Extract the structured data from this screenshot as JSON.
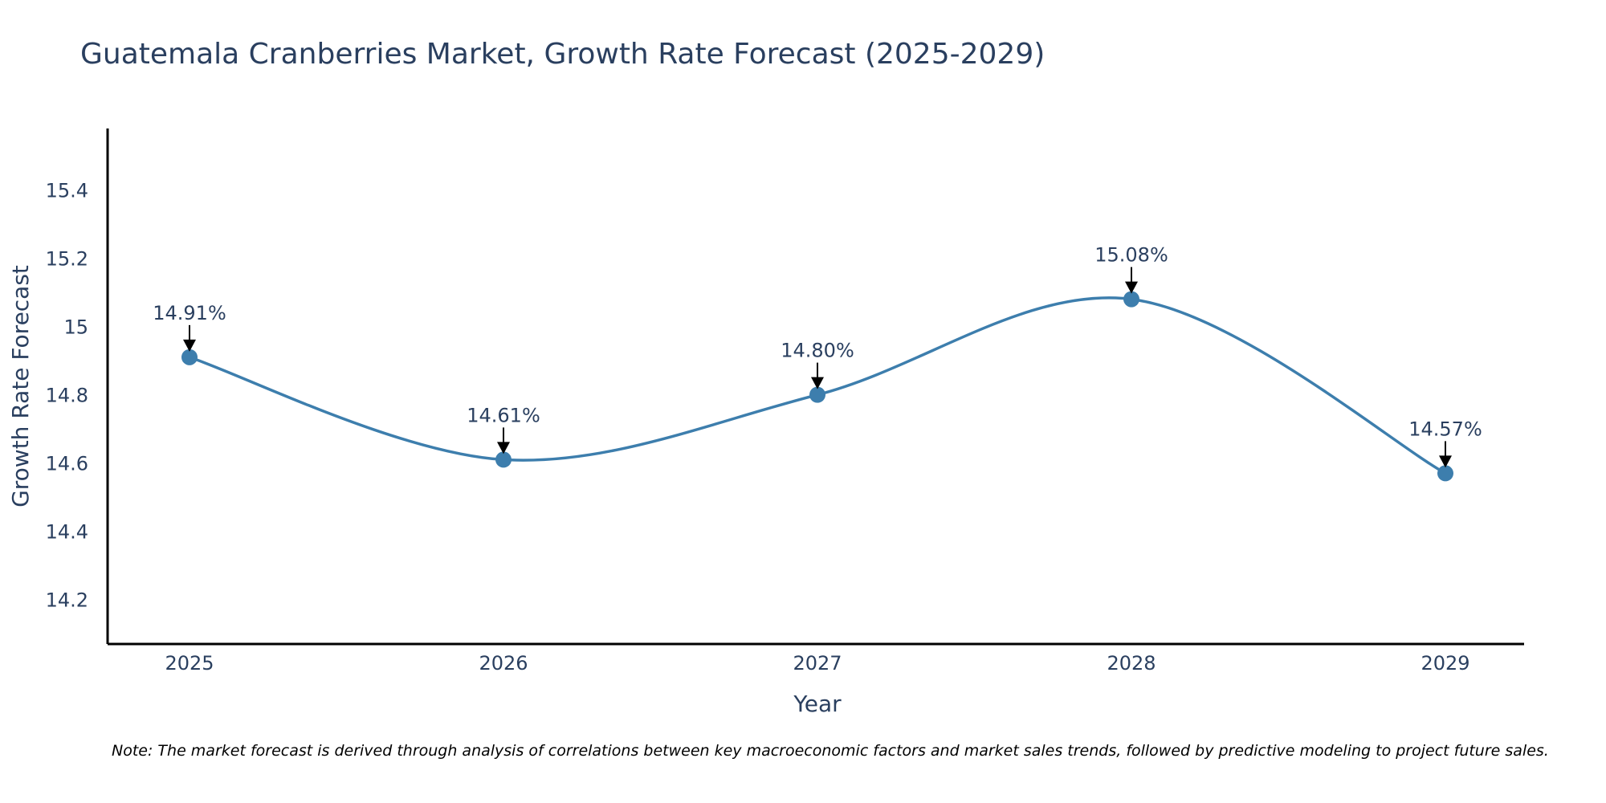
{
  "chart_data": {
    "type": "line",
    "title": "Guatemala Cranberries Market, Growth Rate Forecast (2025-2029)",
    "xlabel": "Year",
    "ylabel": "Growth Rate Forecast",
    "categories": [
      "2025",
      "2026",
      "2027",
      "2028",
      "2029"
    ],
    "values": [
      14.91,
      14.61,
      14.8,
      15.08,
      14.57
    ],
    "data_labels": [
      "14.91%",
      "14.61%",
      "14.80%",
      "15.08%",
      "14.57%"
    ],
    "ylim": [
      14.07,
      15.58
    ],
    "yticks": [
      14.2,
      14.4,
      14.6,
      14.8,
      15,
      15.2,
      15.4
    ],
    "ytick_labels": [
      "14.2",
      "14.4",
      "14.6",
      "14.8",
      "15",
      "15.2",
      "15.4"
    ],
    "grid": false,
    "line_shape": "spline",
    "colors": {
      "line": "#3d7ead",
      "marker": "#3d7ead",
      "arrow": "#000000",
      "axis": "#000000",
      "text": "#2a3f5f"
    },
    "note": "Note: The market forecast is derived through analysis of correlations between key macroeconomic factors and market sales trends, followed by predictive modeling to project future sales."
  }
}
